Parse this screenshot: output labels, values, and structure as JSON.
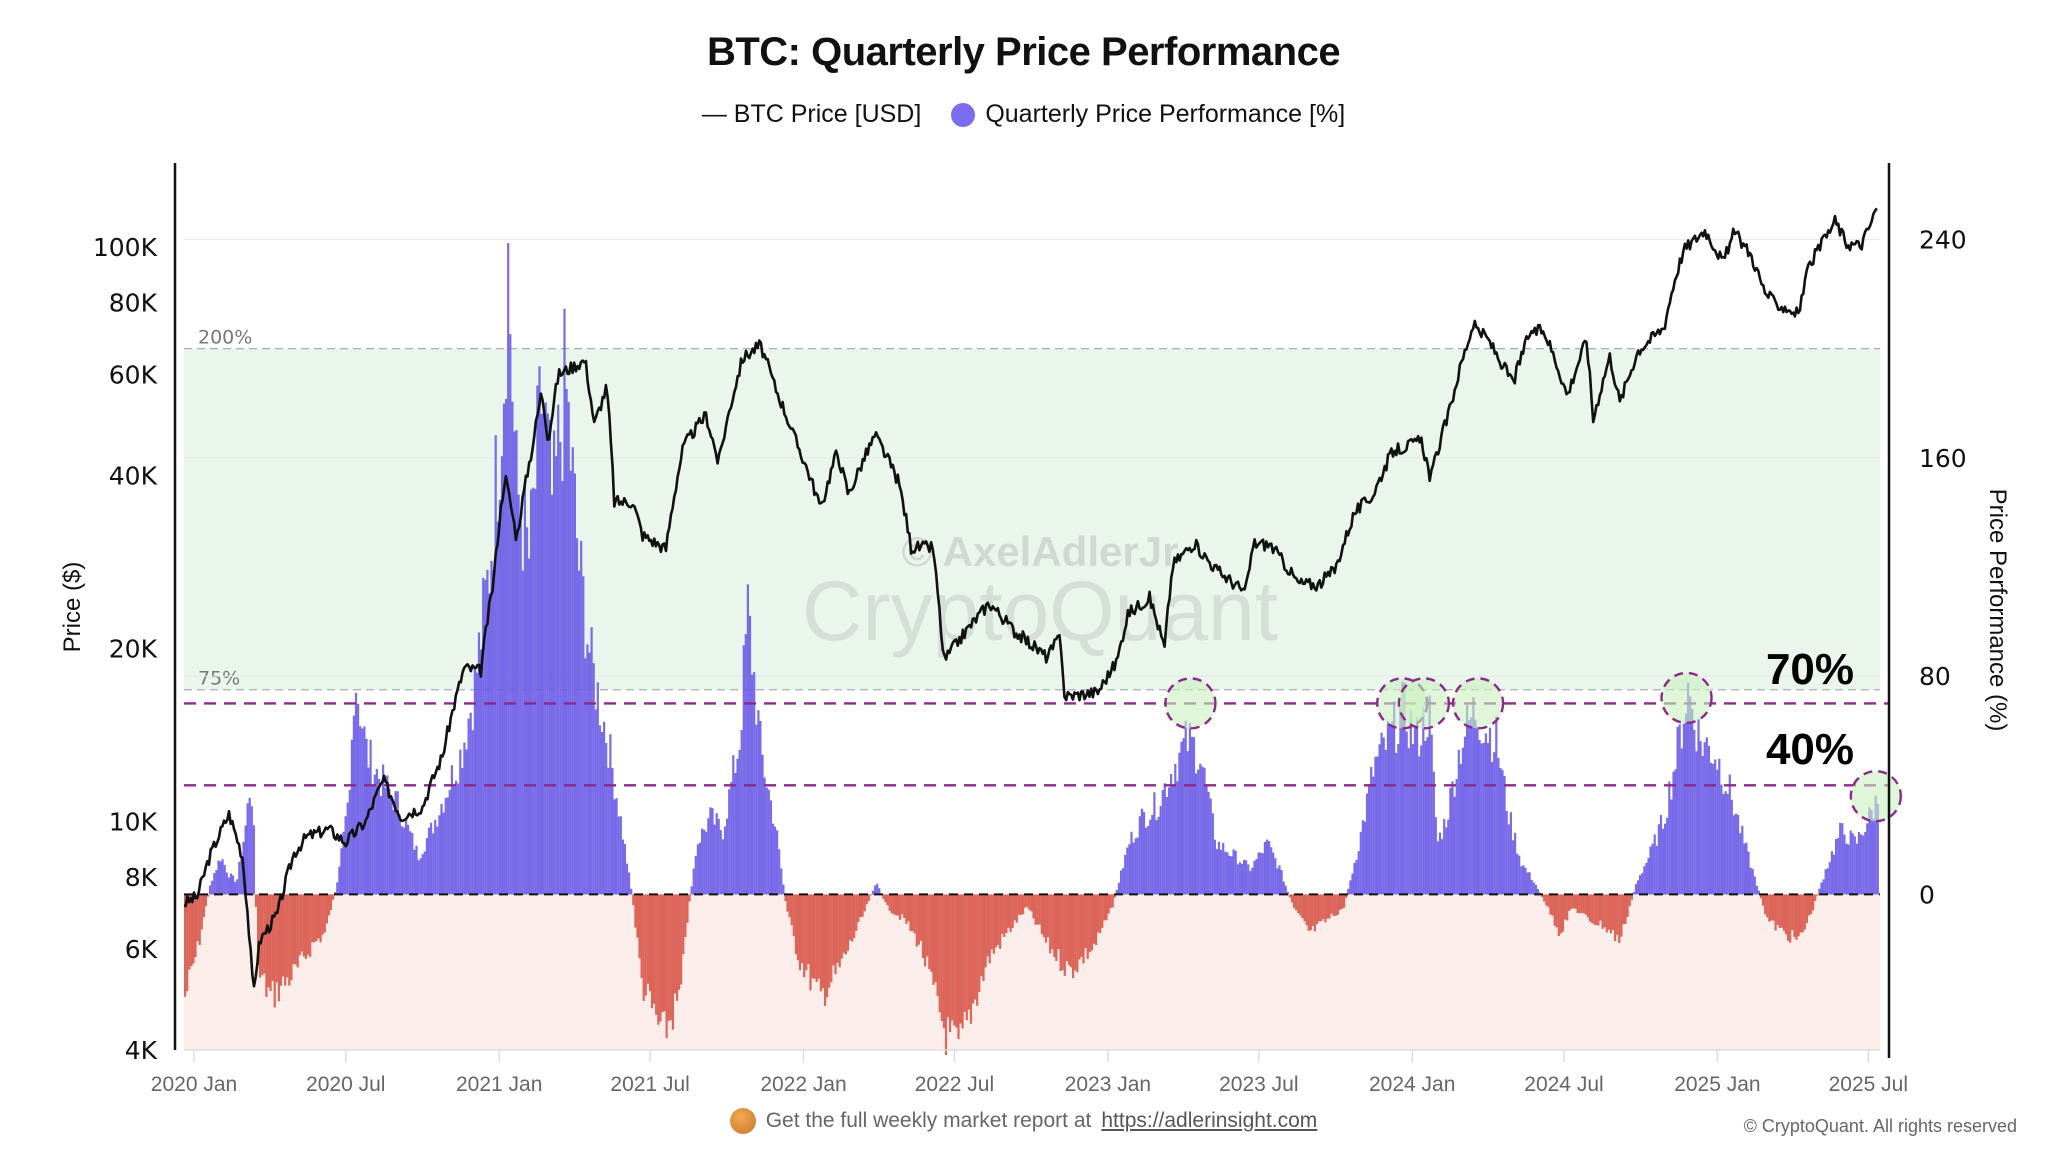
{
  "chart_data": {
    "type": "bar",
    "title": "BTC: Quarterly Price Performance",
    "legend": [
      {
        "label": "— BTC Price [USD]",
        "marker": "line",
        "color": "#111111"
      },
      {
        "label": "Quarterly Price Performance [%]",
        "marker": "dot",
        "color": "#7b6cf0"
      }
    ],
    "legend_position": "top-center",
    "x_axis": {
      "ticks": [
        "2020 Jan",
        "2020 Jul",
        "2021 Jan",
        "2021 Jul",
        "2022 Jan",
        "2022 Jul",
        "2023 Jan",
        "2023 Jul",
        "2024 Jan",
        "2024 Jul",
        "2025 Jan",
        "2025 Jul"
      ],
      "tick_dates": [
        "2020-01-01",
        "2020-07-01",
        "2021-01-01",
        "2021-07-01",
        "2022-01-01",
        "2022-07-01",
        "2023-01-01",
        "2023-07-01",
        "2024-01-01",
        "2024-07-01",
        "2025-01-01",
        "2025-07-01"
      ],
      "range": [
        "2019-12-20",
        "2025-07-15"
      ]
    },
    "y_left": {
      "label": "Price ($)",
      "scale": "log",
      "range": [
        4000,
        140000
      ],
      "ticks": [
        4000,
        6000,
        8000,
        10000,
        20000,
        40000,
        60000,
        80000,
        100000
      ],
      "tick_labels": [
        "4K",
        "6K",
        "8K",
        "10K",
        "20K",
        "40K",
        "60K",
        "80K",
        "100K"
      ]
    },
    "y_right": {
      "label": "Price Performance (%)",
      "scale": "linear",
      "range": [
        -57,
        268
      ],
      "ticks": [
        0,
        80,
        160,
        240
      ],
      "tick_labels": [
        "0",
        "80",
        "160",
        "240"
      ]
    },
    "bands": [
      {
        "name": "overheated-zone",
        "from": 75,
        "to": 200,
        "color": "#eaf5ec",
        "labels": [
          "75%",
          "200%"
        ]
      },
      {
        "name": "negative-zone",
        "from": -57,
        "to": 0,
        "color": "#fbeeea"
      }
    ],
    "threshold_lines": [
      {
        "value": 70,
        "label": "70%",
        "color": "#8a2a8a"
      },
      {
        "value": 40,
        "label": "40%",
        "color": "#8a2a8a"
      },
      {
        "value": 0,
        "label": "",
        "color": "#111111"
      }
    ],
    "highlight_circles": [
      {
        "date": "2023-04-10",
        "value": 70
      },
      {
        "date": "2023-12-20",
        "value": 70
      },
      {
        "date": "2024-01-15",
        "value": 70
      },
      {
        "date": "2024-03-20",
        "value": 70
      },
      {
        "date": "2024-11-25",
        "value": 72
      },
      {
        "date": "2025-07-10",
        "value": 36
      }
    ],
    "series": [
      {
        "name": "BTC Price [USD]",
        "type": "line",
        "axis": "left",
        "color": "#111111",
        "points": [
          [
            "2019-12-20",
            7200
          ],
          [
            "2020-01-05",
            7400
          ],
          [
            "2020-01-20",
            8700
          ],
          [
            "2020-02-12",
            10300
          ],
          [
            "2020-02-28",
            8700
          ],
          [
            "2020-03-12",
            5000
          ],
          [
            "2020-03-20",
            6200
          ],
          [
            "2020-04-10",
            6900
          ],
          [
            "2020-04-30",
            8800
          ],
          [
            "2020-05-15",
            9400
          ],
          [
            "2020-06-10",
            9700
          ],
          [
            "2020-07-01",
            9200
          ],
          [
            "2020-07-25",
            10000
          ],
          [
            "2020-08-15",
            11800
          ],
          [
            "2020-09-05",
            10200
          ],
          [
            "2020-10-01",
            10600
          ],
          [
            "2020-10-25",
            13000
          ],
          [
            "2020-11-20",
            18500
          ],
          [
            "2020-12-10",
            18300
          ],
          [
            "2020-12-25",
            26000
          ],
          [
            "2021-01-08",
            40000
          ],
          [
            "2021-01-22",
            31000
          ],
          [
            "2021-02-10",
            45000
          ],
          [
            "2021-02-21",
            56000
          ],
          [
            "2021-03-01",
            46000
          ],
          [
            "2021-03-13",
            60000
          ],
          [
            "2021-04-14",
            63500
          ],
          [
            "2021-04-25",
            49000
          ],
          [
            "2021-05-10",
            57000
          ],
          [
            "2021-05-19",
            36000
          ],
          [
            "2021-06-10",
            36000
          ],
          [
            "2021-06-22",
            31500
          ],
          [
            "2021-07-20",
            29800
          ],
          [
            "2021-08-10",
            45000
          ],
          [
            "2021-09-06",
            51000
          ],
          [
            "2021-09-21",
            42000
          ],
          [
            "2021-10-20",
            64000
          ],
          [
            "2021-11-10",
            67500
          ],
          [
            "2021-11-28",
            57000
          ],
          [
            "2021-12-20",
            47000
          ],
          [
            "2022-01-22",
            35000
          ],
          [
            "2022-02-10",
            44000
          ],
          [
            "2022-02-24",
            37000
          ],
          [
            "2022-03-28",
            47000
          ],
          [
            "2022-04-25",
            39000
          ],
          [
            "2022-05-10",
            30000
          ],
          [
            "2022-06-05",
            30000
          ],
          [
            "2022-06-18",
            19000
          ],
          [
            "2022-07-10",
            21000
          ],
          [
            "2022-08-12",
            24000
          ],
          [
            "2022-09-10",
            21500
          ],
          [
            "2022-10-20",
            19300
          ],
          [
            "2022-11-05",
            21000
          ],
          [
            "2022-11-10",
            16500
          ],
          [
            "2022-12-20",
            16800
          ],
          [
            "2023-01-12",
            19000
          ],
          [
            "2023-01-25",
            23000
          ],
          [
            "2023-02-20",
            24500
          ],
          [
            "2023-03-10",
            20000
          ],
          [
            "2023-03-20",
            28000
          ],
          [
            "2023-04-14",
            30500
          ],
          [
            "2023-05-10",
            27500
          ],
          [
            "2023-06-15",
            25000
          ],
          [
            "2023-06-25",
            30500
          ],
          [
            "2023-07-15",
            30300
          ],
          [
            "2023-08-17",
            26000
          ],
          [
            "2023-09-10",
            25800
          ],
          [
            "2023-10-01",
            27500
          ],
          [
            "2023-10-24",
            34500
          ],
          [
            "2023-11-15",
            37000
          ],
          [
            "2023-12-08",
            44000
          ],
          [
            "2024-01-12",
            46000
          ],
          [
            "2024-01-23",
            39500
          ],
          [
            "2024-02-15",
            52000
          ],
          [
            "2024-02-28",
            62000
          ],
          [
            "2024-03-14",
            73000
          ],
          [
            "2024-04-01",
            69000
          ],
          [
            "2024-04-15",
            63500
          ],
          [
            "2024-05-01",
            58000
          ],
          [
            "2024-05-21",
            71000
          ],
          [
            "2024-06-07",
            71500
          ],
          [
            "2024-06-25",
            61000
          ],
          [
            "2024-07-05",
            55000
          ],
          [
            "2024-07-28",
            69000
          ],
          [
            "2024-08-05",
            50000
          ],
          [
            "2024-08-25",
            64500
          ],
          [
            "2024-09-06",
            53500
          ],
          [
            "2024-09-28",
            66000
          ],
          [
            "2024-10-29",
            72500
          ],
          [
            "2024-11-12",
            89000
          ],
          [
            "2024-11-22",
            99000
          ],
          [
            "2024-12-05",
            103000
          ],
          [
            "2024-12-17",
            107000
          ],
          [
            "2025-01-08",
            94000
          ],
          [
            "2025-01-21",
            106000
          ],
          [
            "2025-02-10",
            97000
          ],
          [
            "2025-02-26",
            84000
          ],
          [
            "2025-03-10",
            80000
          ],
          [
            "2025-04-08",
            76500
          ],
          [
            "2025-04-22",
            93500
          ],
          [
            "2025-05-10",
            103000
          ],
          [
            "2025-05-22",
            111000
          ],
          [
            "2025-06-05",
            101500
          ],
          [
            "2025-06-22",
            100500
          ],
          [
            "2025-07-03",
            109000
          ],
          [
            "2025-07-12",
            118000
          ]
        ]
      },
      {
        "name": "Quarterly Price Performance [%]",
        "type": "bar",
        "axis": "right",
        "positive_color": "#6b5ce7",
        "negative_color": "#d9574a",
        "points": [
          [
            "2019-12-20",
            -40
          ],
          [
            "2020-01-05",
            -20
          ],
          [
            "2020-01-20",
            5
          ],
          [
            "2020-02-01",
            15
          ],
          [
            "2020-02-10",
            8
          ],
          [
            "2020-02-20",
            5
          ],
          [
            "2020-03-01",
            25
          ],
          [
            "2020-03-08",
            45
          ],
          [
            "2020-03-12",
            20
          ],
          [
            "2020-03-16",
            -30
          ],
          [
            "2020-04-01",
            -40
          ],
          [
            "2020-05-01",
            -30
          ],
          [
            "2020-05-20",
            -20
          ],
          [
            "2020-06-05",
            -15
          ],
          [
            "2020-06-20",
            5
          ],
          [
            "2020-07-05",
            40
          ],
          [
            "2020-07-10",
            88
          ],
          [
            "2020-07-25",
            55
          ],
          [
            "2020-08-10",
            45
          ],
          [
            "2020-09-01",
            35
          ],
          [
            "2020-09-25",
            15
          ],
          [
            "2020-10-10",
            25
          ],
          [
            "2020-10-28",
            40
          ],
          [
            "2020-11-15",
            55
          ],
          [
            "2020-12-01",
            80
          ],
          [
            "2020-12-20",
            130
          ],
          [
            "2021-01-05",
            200
          ],
          [
            "2021-01-10",
            250
          ],
          [
            "2021-01-20",
            160
          ],
          [
            "2021-02-05",
            130
          ],
          [
            "2021-02-20",
            195
          ],
          [
            "2021-03-05",
            150
          ],
          [
            "2021-03-20",
            200
          ],
          [
            "2021-04-05",
            130
          ],
          [
            "2021-04-20",
            90
          ],
          [
            "2021-05-10",
            60
          ],
          [
            "2021-05-25",
            30
          ],
          [
            "2021-06-08",
            0
          ],
          [
            "2021-06-20",
            -35
          ],
          [
            "2021-07-15",
            -55
          ],
          [
            "2021-08-05",
            -40
          ],
          [
            "2021-08-15",
            -5
          ],
          [
            "2021-08-25",
            20
          ],
          [
            "2021-09-10",
            30
          ],
          [
            "2021-09-25",
            25
          ],
          [
            "2021-10-15",
            60
          ],
          [
            "2021-10-25",
            110
          ],
          [
            "2021-11-10",
            55
          ],
          [
            "2021-11-28",
            25
          ],
          [
            "2021-12-10",
            -5
          ],
          [
            "2021-12-25",
            -25
          ],
          [
            "2022-01-20",
            -40
          ],
          [
            "2022-02-10",
            -30
          ],
          [
            "2022-03-10",
            -10
          ],
          [
            "2022-03-28",
            5
          ],
          [
            "2022-04-10",
            -5
          ],
          [
            "2022-05-01",
            -10
          ],
          [
            "2022-05-20",
            -20
          ],
          [
            "2022-06-20",
            -55
          ],
          [
            "2022-07-05",
            -60
          ],
          [
            "2022-07-20",
            -45
          ],
          [
            "2022-08-10",
            -25
          ],
          [
            "2022-09-01",
            -15
          ],
          [
            "2022-09-25",
            -5
          ],
          [
            "2022-10-20",
            -20
          ],
          [
            "2022-11-15",
            -30
          ],
          [
            "2022-12-15",
            -20
          ],
          [
            "2023-01-05",
            -5
          ],
          [
            "2023-01-25",
            20
          ],
          [
            "2023-02-10",
            30
          ],
          [
            "2023-02-28",
            35
          ],
          [
            "2023-03-20",
            50
          ],
          [
            "2023-04-05",
            60
          ],
          [
            "2023-04-20",
            55
          ],
          [
            "2023-05-10",
            20
          ],
          [
            "2023-06-01",
            15
          ],
          [
            "2023-06-20",
            10
          ],
          [
            "2023-07-10",
            20
          ],
          [
            "2023-07-25",
            10
          ],
          [
            "2023-08-10",
            -5
          ],
          [
            "2023-08-30",
            -15
          ],
          [
            "2023-09-20",
            -10
          ],
          [
            "2023-10-10",
            -5
          ],
          [
            "2023-10-28",
            20
          ],
          [
            "2023-11-15",
            50
          ],
          [
            "2023-12-05",
            62
          ],
          [
            "2023-12-20",
            72
          ],
          [
            "2024-01-05",
            60
          ],
          [
            "2024-01-20",
            72
          ],
          [
            "2024-01-30",
            20
          ],
          [
            "2024-02-10",
            30
          ],
          [
            "2024-02-28",
            60
          ],
          [
            "2024-03-15",
            72
          ],
          [
            "2024-03-28",
            65
          ],
          [
            "2024-04-10",
            60
          ],
          [
            "2024-04-25",
            30
          ],
          [
            "2024-05-10",
            12
          ],
          [
            "2024-05-25",
            5
          ],
          [
            "2024-06-10",
            -5
          ],
          [
            "2024-06-25",
            -15
          ],
          [
            "2024-07-10",
            -5
          ],
          [
            "2024-07-30",
            -10
          ],
          [
            "2024-08-15",
            -12
          ],
          [
            "2024-09-05",
            -18
          ],
          [
            "2024-09-25",
            5
          ],
          [
            "2024-10-10",
            15
          ],
          [
            "2024-10-28",
            30
          ],
          [
            "2024-11-15",
            60
          ],
          [
            "2024-11-25",
            80
          ],
          [
            "2024-12-10",
            60
          ],
          [
            "2024-12-28",
            55
          ],
          [
            "2025-01-15",
            40
          ],
          [
            "2025-02-01",
            20
          ],
          [
            "2025-02-15",
            5
          ],
          [
            "2025-03-01",
            -10
          ],
          [
            "2025-03-20",
            -15
          ],
          [
            "2025-04-08",
            -18
          ],
          [
            "2025-04-25",
            -5
          ],
          [
            "2025-05-10",
            10
          ],
          [
            "2025-05-28",
            25
          ],
          [
            "2025-06-15",
            20
          ],
          [
            "2025-07-01",
            30
          ],
          [
            "2025-07-12",
            38
          ]
        ]
      }
    ],
    "annotations": [
      {
        "text": "70%",
        "value": 70
      },
      {
        "text": "40%",
        "value": 40
      }
    ],
    "watermark": {
      "line1": "© AxelAdlerJr",
      "line2": "CryptoQuant"
    }
  },
  "footer": {
    "promo_text": "Get the full weekly market report at",
    "promo_link": "https://adlerinsight.com",
    "copyright": "© CryptoQuant. All rights reserved"
  }
}
